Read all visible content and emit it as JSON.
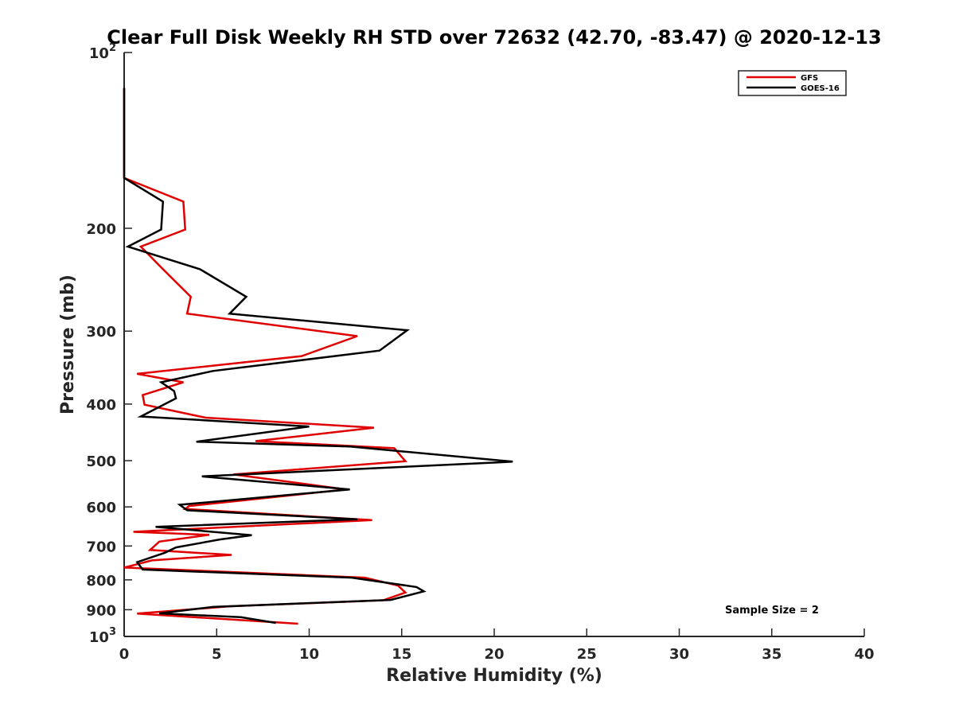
{
  "chart_data": {
    "type": "line",
    "title": "Clear Full Disk Weekly RH STD over 72632 (42.70, -83.47) @ 2020-12-13",
    "xlabel": "Relative Humidity (%)",
    "ylabel": "Pressure (mb)",
    "xlim": [
      0,
      40
    ],
    "ylim": [
      100,
      1000
    ],
    "yscale": "log",
    "y_reversed": true,
    "grid": false,
    "legend_position": "top-right",
    "x_ticks": [
      "0",
      "5",
      "10",
      "15",
      "20",
      "25",
      "30",
      "35",
      "40"
    ],
    "x_tick_values": [
      0,
      5,
      10,
      15,
      20,
      25,
      30,
      35,
      40
    ],
    "y_ticks": [
      {
        "value": 100,
        "base": "10",
        "exp": "2",
        "text": ""
      },
      {
        "value": 200,
        "base": "",
        "exp": "",
        "text": "200"
      },
      {
        "value": 300,
        "base": "",
        "exp": "",
        "text": "300"
      },
      {
        "value": 400,
        "base": "",
        "exp": "",
        "text": "400"
      },
      {
        "value": 500,
        "base": "",
        "exp": "",
        "text": "500"
      },
      {
        "value": 600,
        "base": "",
        "exp": "",
        "text": "600"
      },
      {
        "value": 700,
        "base": "",
        "exp": "",
        "text": "700"
      },
      {
        "value": 800,
        "base": "",
        "exp": "",
        "text": "800"
      },
      {
        "value": 900,
        "base": "",
        "exp": "",
        "text": "900"
      },
      {
        "value": 1000,
        "base": "10",
        "exp": "3",
        "text": ""
      }
    ],
    "annotation": "Sample Size = 2",
    "series": [
      {
        "name": "GFS",
        "color": "#e00000",
        "x": [
          0,
          0,
          0,
          3.2,
          3.3,
          0.9,
          2.1,
          3.6,
          3.4,
          12.6,
          9.6,
          0.7,
          3.2,
          1.0,
          1.1,
          4.4,
          13.5,
          7.1,
          14.6,
          15.2,
          5.9,
          12.0,
          3.5,
          3.3,
          13.4,
          0.5,
          4.6,
          1.9,
          1.4,
          5.8,
          1.5,
          0,
          13.0,
          14.8,
          15.2,
          14.0,
          5.7,
          0.7,
          9.4
        ],
        "y": [
          115,
          148,
          164,
          180,
          201,
          215,
          235,
          262,
          280,
          306,
          331,
          355,
          367,
          386,
          401,
          422,
          439,
          463,
          476,
          501,
          528,
          560,
          598,
          605,
          632,
          662,
          670,
          688,
          711,
          725,
          741,
          762,
          793,
          818,
          841,
          867,
          888,
          914,
          951
        ]
      },
      {
        "name": "GOES-16",
        "color": "#000000",
        "x": [
          0,
          0,
          0,
          2.1,
          2.0,
          0.2,
          4.1,
          6.6,
          5.7,
          15.3,
          13.8,
          4.8,
          2.0,
          2.7,
          2.8,
          0.9,
          10.0,
          3.9,
          12.2,
          21.0,
          4.2,
          12.2,
          3.0,
          3.4,
          12.6,
          1.7,
          6.9,
          5.2,
          2.8,
          2.2,
          0.7,
          1.0,
          12.3,
          15.8,
          16.2,
          14.4,
          4.8,
          1.9,
          6.3,
          8.2
        ],
        "y": [
          115,
          148,
          164,
          180,
          201,
          215,
          235,
          262,
          280,
          299,
          324,
          351,
          367,
          380,
          391,
          420,
          437,
          464,
          473,
          502,
          532,
          560,
          595,
          608,
          630,
          649,
          671,
          682,
          704,
          719,
          746,
          768,
          793,
          823,
          837,
          866,
          890,
          913,
          927,
          948
        ]
      }
    ]
  }
}
